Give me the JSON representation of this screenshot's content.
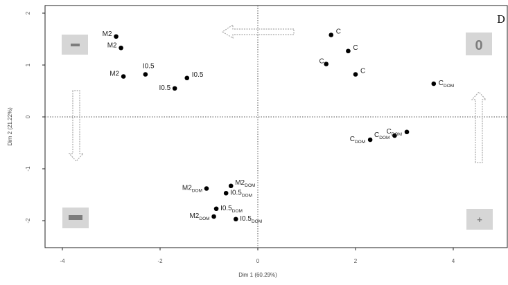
{
  "panel_label": "D",
  "quadrant_signs": {
    "top_left": "–",
    "top_right": "0",
    "bottom_left": "—",
    "bottom_right": "+"
  },
  "chart_data": {
    "type": "scatter",
    "title": "",
    "xlabel": "Dim 1 (60.29%)",
    "ylabel": "Dim 2 (21.22%)",
    "xlim": [
      -4.4,
      5.0
    ],
    "ylim": [
      -2.55,
      2.05
    ],
    "xticks": [
      -4,
      -2,
      0,
      2,
      4
    ],
    "yticks": [
      2,
      1,
      0,
      -1,
      -2
    ],
    "reference_lines": {
      "x": 0,
      "y": 0,
      "style": "dotted"
    },
    "grid": false,
    "points": [
      {
        "x": -2.9,
        "y": 1.55,
        "label": "M2",
        "sub": ""
      },
      {
        "x": -2.8,
        "y": 1.33,
        "label": "M2",
        "sub": ""
      },
      {
        "x": -2.75,
        "y": 0.78,
        "label": "M2",
        "sub": ""
      },
      {
        "x": -2.3,
        "y": 0.82,
        "label": "I0.5",
        "sub": ""
      },
      {
        "x": -1.45,
        "y": 0.75,
        "label": "I0.5",
        "sub": ""
      },
      {
        "x": -1.7,
        "y": 0.55,
        "label": "I0.5",
        "sub": ""
      },
      {
        "x": 1.5,
        "y": 1.58,
        "label": "C",
        "sub": ""
      },
      {
        "x": 1.85,
        "y": 1.27,
        "label": "C",
        "sub": ""
      },
      {
        "x": 1.4,
        "y": 1.02,
        "label": "C",
        "sub": ""
      },
      {
        "x": 2.0,
        "y": 0.82,
        "label": "C",
        "sub": ""
      },
      {
        "x": 3.6,
        "y": 0.64,
        "label": "C",
        "sub": "DOM"
      },
      {
        "x": 2.3,
        "y": -0.44,
        "label": "C",
        "sub": "DOM"
      },
      {
        "x": 2.8,
        "y": -0.36,
        "label": "C",
        "sub": "DOM"
      },
      {
        "x": 3.05,
        "y": -0.29,
        "label": "C",
        "sub": "DOM"
      },
      {
        "x": -1.05,
        "y": -1.38,
        "label": "M2",
        "sub": "DOM"
      },
      {
        "x": -0.55,
        "y": -1.33,
        "label": "M2",
        "sub": "DOM"
      },
      {
        "x": -0.65,
        "y": -1.47,
        "label": "I0.5",
        "sub": "DOM"
      },
      {
        "x": -0.85,
        "y": -1.77,
        "label": "I0.5",
        "sub": "DOM"
      },
      {
        "x": -0.9,
        "y": -1.92,
        "label": "M2",
        "sub": "DOM"
      },
      {
        "x": -0.45,
        "y": -1.97,
        "label": "I0.5",
        "sub": "DOM"
      }
    ]
  }
}
